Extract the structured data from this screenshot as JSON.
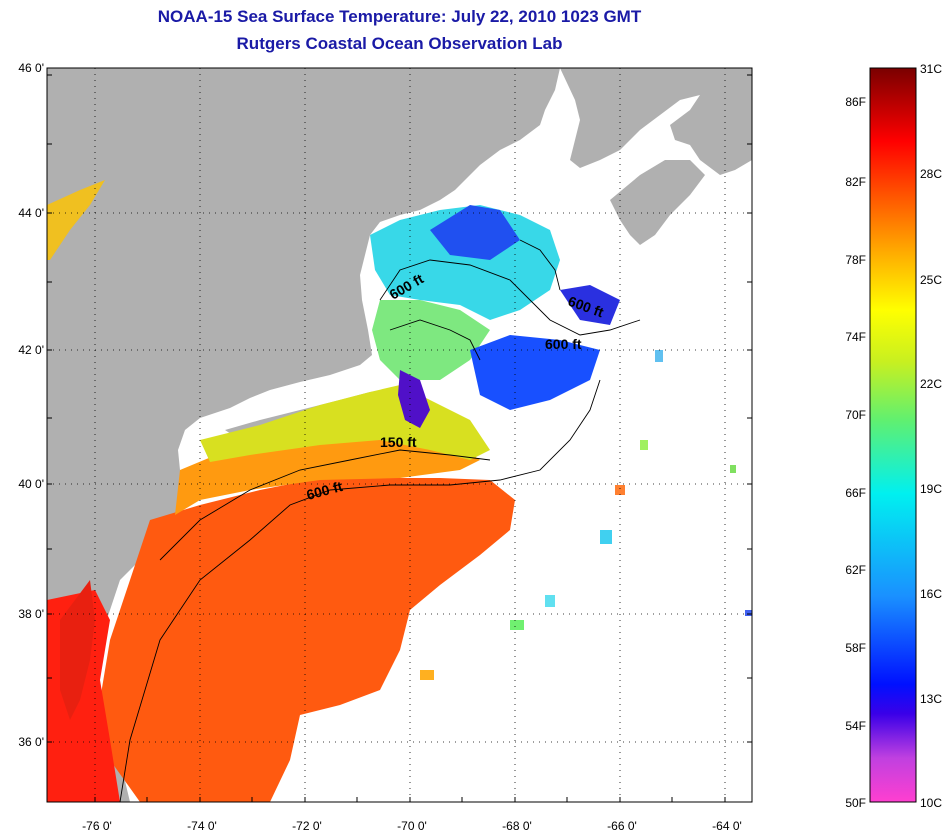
{
  "title_line1": "NOAA-15 Sea Surface Temperature:  July 22, 2010 1023 GMT",
  "title_line2": "Rutgers Coastal Ocean Observation Lab",
  "lat_labels": [
    "46 0'",
    "44 0'",
    "42 0'",
    "40 0'",
    "38 0'",
    "36 0'"
  ],
  "lon_labels": [
    "-76 0'",
    "-74 0'",
    "-72 0'",
    "-70 0'",
    "-68 0'",
    "-66 0'",
    "-64 0'"
  ],
  "contour_labels": [
    "600 ft",
    "600 ft",
    "600 ft",
    "150 ft",
    "600 ft"
  ],
  "colorbar": {
    "fahrenheit_labels": [
      "86F",
      "82F",
      "78F",
      "74F",
      "70F",
      "66F",
      "62F",
      "58F",
      "54F",
      "50F"
    ],
    "celsius_labels": [
      "31C",
      "28C",
      "25C",
      "22C",
      "19C",
      "16C",
      "13C",
      "10C"
    ]
  },
  "colors": {
    "land": "#b0b0b0",
    "cloud": "#ffffff",
    "title": "#1a1aa6"
  }
}
